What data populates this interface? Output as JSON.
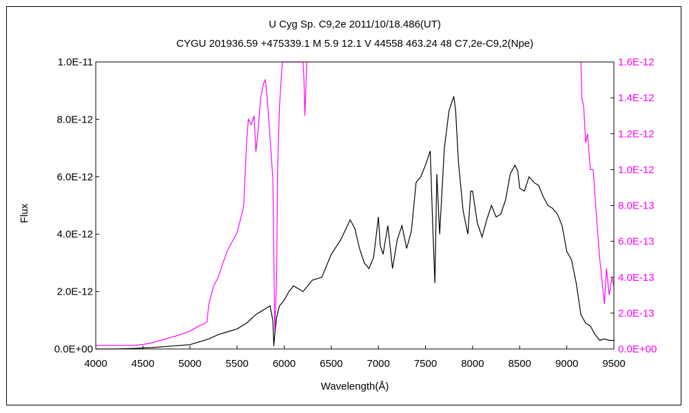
{
  "chart_data": {
    "type": "line",
    "title": "U Cyg     Sp. C9,2e     2011/10/18.486(UT)",
    "subtitle": "CYGU 201936.59 +475339.1  M 5.9 12.1  V 44558 463.24 48 C7,2e-C9,2(Npe)",
    "xlabel": "Wavelength(Å)",
    "ylabel": "Flux",
    "xlim": [
      4000,
      9500
    ],
    "ylim": [
      0,
      1e-11
    ],
    "y2lim": [
      0,
      1.6e-12
    ],
    "grid": false,
    "x_ticks": [
      4000,
      4500,
      5000,
      5500,
      6000,
      6500,
      7000,
      7500,
      8000,
      8500,
      9000,
      9500
    ],
    "y_ticks": [
      "0.0E+00",
      "2.0E-12",
      "4.0E-12",
      "6.0E-12",
      "8.0E-12",
      "1.0E-11"
    ],
    "y2_ticks": [
      "0.0E+00",
      "2.0E-13",
      "4.0E-13",
      "6.0E-13",
      "8.0E-13",
      "1.0E-12",
      "1.2E-12",
      "1.4E-12",
      "1.6E-12"
    ],
    "series": [
      {
        "axis": "left",
        "color": "#000000",
        "x": [
          4000,
          4200,
          4400,
          4600,
          4800,
          5000,
          5200,
          5300,
          5400,
          5500,
          5600,
          5700,
          5750,
          5800,
          5850,
          5880,
          5890,
          5900,
          5920,
          5950,
          6000,
          6050,
          6100,
          6200,
          6300,
          6400,
          6500,
          6600,
          6700,
          6750,
          6800,
          6850,
          6900,
          6950,
          7000,
          7020,
          7050,
          7100,
          7150,
          7200,
          7250,
          7300,
          7350,
          7400,
          7450,
          7500,
          7550,
          7580,
          7600,
          7620,
          7650,
          7700,
          7750,
          7800,
          7820,
          7850,
          7900,
          7950,
          7980,
          8000,
          8050,
          8100,
          8150,
          8200,
          8250,
          8300,
          8350,
          8400,
          8450,
          8480,
          8500,
          8550,
          8600,
          8650,
          8700,
          8750,
          8800,
          8850,
          8900,
          8950,
          9000,
          9050,
          9100,
          9150,
          9200,
          9250,
          9300,
          9350,
          9400,
          9450,
          9500
        ],
        "y": [
          0.0,
          0.0,
          2e-14,
          5e-14,
          1e-13,
          1.5e-13,
          3.5e-13,
          5e-13,
          6e-13,
          7e-13,
          9e-13,
          1.2e-12,
          1.3e-12,
          1.4e-12,
          1.5e-12,
          1e-12,
          1e-13,
          5e-13,
          1.1e-12,
          1.5e-12,
          1.7e-12,
          2e-12,
          2.2e-12,
          2e-12,
          2.4e-12,
          2.5e-12,
          3.3e-12,
          3.8e-12,
          4.5e-12,
          4.2e-12,
          3.5e-12,
          3e-12,
          2.8e-12,
          3.2e-12,
          4.6e-12,
          3.6e-12,
          3.3e-12,
          4.3e-12,
          2.8e-12,
          3.8e-12,
          4.3e-12,
          3.5e-12,
          4.1e-12,
          5.8e-12,
          6e-12,
          6.4e-12,
          6.9e-12,
          4e-12,
          2.3e-12,
          6.1e-12,
          4e-12,
          7e-12,
          8.3e-12,
          8.8e-12,
          8.3e-12,
          6.5e-12,
          4.8e-12,
          4e-12,
          5.5e-12,
          5.5e-12,
          4.4e-12,
          3.9e-12,
          4.5e-12,
          5e-12,
          4.6e-12,
          4.7e-12,
          5.2e-12,
          6.1e-12,
          6.4e-12,
          6.2e-12,
          5.6e-12,
          5.5e-12,
          6e-12,
          5.8e-12,
          5.7e-12,
          5.3e-12,
          5e-12,
          4.9e-12,
          4.7e-12,
          4.3e-12,
          3.4e-12,
          3.1e-12,
          2.3e-12,
          1.2e-12,
          9e-13,
          8e-13,
          5e-13,
          3e-13,
          3.5e-13,
          3e-13,
          3e-13
        ]
      },
      {
        "axis": "right",
        "color": "#ff00ff",
        "x": [
          4000,
          4200,
          4400,
          4500,
          4600,
          4700,
          4800,
          4900,
          5000,
          5100,
          5150,
          5180,
          5200,
          5250,
          5300,
          5350,
          5400,
          5450,
          5500,
          5550,
          5570,
          5600,
          5620,
          5650,
          5680,
          5700,
          5720,
          5750,
          5780,
          5800,
          5820,
          5840,
          5860,
          5880,
          5900,
          5920,
          5930,
          5950,
          5980,
          6000,
          6020,
          6040,
          6060,
          6080,
          6100,
          6200,
          6210,
          6220,
          6240,
          9150,
          9160,
          9180,
          9200,
          9220,
          9250,
          9280,
          9300,
          9320,
          9350,
          9380,
          9400,
          9420,
          9450,
          9480,
          9500
        ],
        "y": [
          2e-14,
          2e-14,
          2e-14,
          2.5e-14,
          3.5e-14,
          5e-14,
          6.5e-14,
          8e-14,
          1e-13,
          1.3e-13,
          1.4e-13,
          1.5e-13,
          2.5e-13,
          3.5e-13,
          4e-13,
          4.8e-13,
          5.5e-13,
          6e-13,
          6.5e-13,
          7.5e-13,
          8e-13,
          1.15e-12,
          1.28e-12,
          1.25e-12,
          1.3e-12,
          1.1e-12,
          1.2e-12,
          1.4e-12,
          1.48e-12,
          1.5e-12,
          1.4e-12,
          1.25e-12,
          1.1e-12,
          9.5e-13,
          1e-13,
          4e-13,
          1e-12,
          1.35e-12,
          1.6e-12,
          1.6e-12,
          1.6e-12,
          1.6e-12,
          1.6e-12,
          1.6e-12,
          1.6e-12,
          1.6e-12,
          1.5e-12,
          1.3e-12,
          1.6e-12,
          1.6e-12,
          1.4e-12,
          1.35e-12,
          1.15e-12,
          1.2e-12,
          1e-12,
          1e-12,
          8.5e-13,
          7e-13,
          5e-13,
          3.5e-13,
          2.5e-13,
          4.5e-13,
          3e-13,
          4e-13,
          3.5e-13
        ]
      }
    ]
  }
}
